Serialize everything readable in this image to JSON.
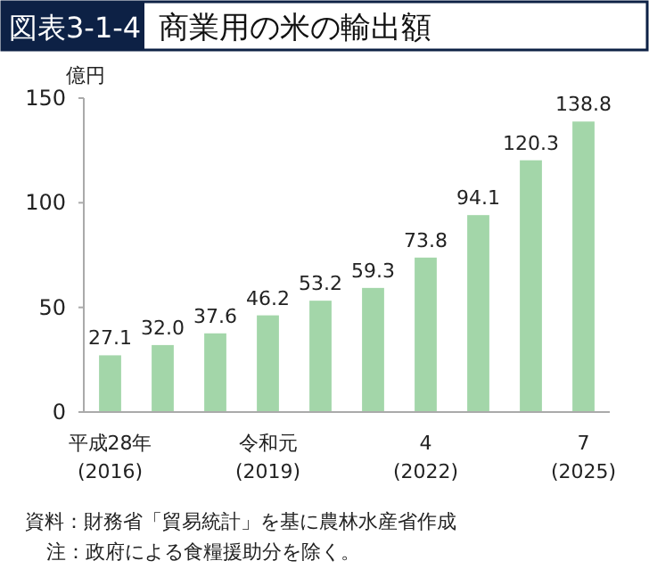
{
  "chart_data": {
    "type": "bar",
    "subtitle": "図表3-1-4",
    "title": "商業用の米の輸出額",
    "ylabel": "億円",
    "categories": [
      "平成28年\n(2016)",
      null,
      null,
      "令和元\n(2019)",
      null,
      null,
      "4\n(2022)",
      null,
      null,
      "7\n(2025)"
    ],
    "values": [
      27.1,
      32.0,
      37.6,
      46.2,
      53.2,
      59.3,
      73.8,
      94.1,
      120.3,
      138.8
    ],
    "value_labels": [
      "27.1",
      "32.0",
      "37.6",
      "46.2",
      "53.2",
      "59.3",
      "73.8",
      "94.1",
      "120.3",
      "138.8"
    ],
    "color": "#a3d6a9",
    "ylim": [
      0,
      150
    ],
    "yticks": [
      0,
      50,
      100,
      150
    ],
    "annotations": [
      "資料：財務省「貿易統計」を基に農林水産省作成",
      "注：政府による食糧援助分を除く。"
    ]
  }
}
